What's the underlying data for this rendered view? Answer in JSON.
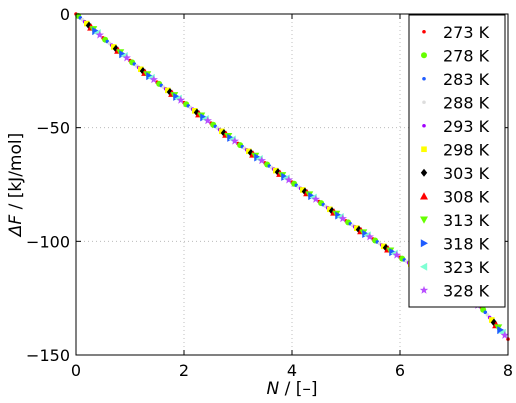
{
  "chart_data": {
    "type": "scatter",
    "xlabel": {
      "symbol": "N",
      "unit": " / [–]"
    },
    "ylabel": {
      "symbol": "ΔF",
      "unit": " / [kJ/mol]"
    },
    "xlim": [
      0,
      8
    ],
    "ylim": [
      -150,
      0
    ],
    "xticks": [
      {
        "value": 0,
        "label": "0"
      },
      {
        "value": 2,
        "label": "2"
      },
      {
        "value": 4,
        "label": "4"
      },
      {
        "value": 6,
        "label": "6"
      },
      {
        "value": 8,
        "label": "8"
      }
    ],
    "yticks": [
      {
        "value": 0,
        "label": "0"
      },
      {
        "value": -50,
        "label": "−50"
      },
      {
        "value": -100,
        "label": "−100"
      },
      {
        "value": -150,
        "label": "−150"
      }
    ],
    "grid": true,
    "grid_style": "dotted",
    "legend_position": "top-right",
    "series": [
      {
        "name": "273 K",
        "color": "#ff0000",
        "marker": "dot",
        "x_offset": 0.0
      },
      {
        "name": "278 K",
        "color": "#66ff00",
        "marker": "circle",
        "x_offset": 0.04
      },
      {
        "name": "283 K",
        "color": "#1f5cff",
        "marker": "dot",
        "x_offset": 0.08
      },
      {
        "name": "288 K",
        "color": "#dddddd",
        "marker": "dot",
        "x_offset": 0.12
      },
      {
        "name": "293 K",
        "color": "#a200ff",
        "marker": "dot",
        "x_offset": 0.16
      },
      {
        "name": "298 K",
        "color": "#ffff00",
        "marker": "square",
        "x_offset": 0.2
      },
      {
        "name": "303 K",
        "color": "#000000",
        "marker": "diamond",
        "x_offset": 0.24
      },
      {
        "name": "308 K",
        "color": "#ff0000",
        "marker": "triangle-up",
        "x_offset": 0.28
      },
      {
        "name": "313 K",
        "color": "#66ff00",
        "marker": "triangle-down",
        "x_offset": 0.32
      },
      {
        "name": "318 K",
        "color": "#1f5cff",
        "marker": "triangle-right",
        "x_offset": 0.36
      },
      {
        "name": "323 K",
        "color": "#7fffd4",
        "marker": "triangle-left",
        "x_offset": 0.4
      },
      {
        "name": "328 K",
        "color": "#b84dff",
        "marker": "star",
        "x_offset": 0.44
      }
    ],
    "curve": {
      "x_step": 0.5,
      "x_start": 0.0,
      "x_end": 8.0,
      "points": [
        [
          0,
          0
        ],
        [
          0.5,
          -10.5
        ],
        [
          1,
          -20.5
        ],
        [
          1.5,
          -30
        ],
        [
          2,
          -39
        ],
        [
          2.5,
          -48
        ],
        [
          3,
          -57
        ],
        [
          3.5,
          -65.5
        ],
        [
          4,
          -74
        ],
        [
          4.5,
          -82.5
        ],
        [
          5,
          -91
        ],
        [
          5.5,
          -99
        ],
        [
          6,
          -107
        ],
        [
          6.5,
          -114.5
        ],
        [
          7,
          -122
        ],
        [
          7.5,
          -129
        ],
        [
          8,
          -143
        ]
      ]
    }
  }
}
